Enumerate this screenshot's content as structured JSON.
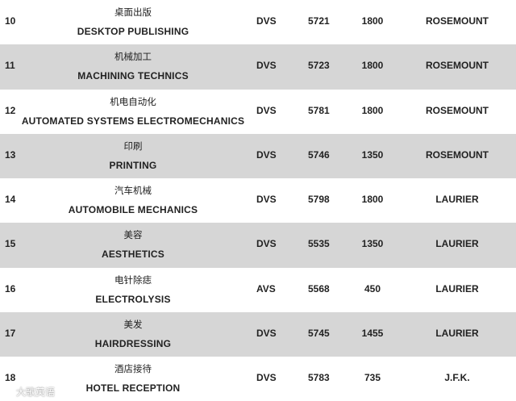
{
  "rows": [
    {
      "num": "10",
      "program_cn": "桌面出版",
      "program_en": "DESKTOP PUBLISHING",
      "type": "DVS",
      "code": "5721",
      "hours": "1800",
      "school": "ROSEMOUNT",
      "shaded": false
    },
    {
      "num": "11",
      "program_cn": "机械加工",
      "program_en": "MACHINING TECHNICS",
      "type": "DVS",
      "code": "5723",
      "hours": "1800",
      "school": "ROSEMOUNT",
      "shaded": true
    },
    {
      "num": "12",
      "program_cn": "机电自动化",
      "program_en": "AUTOMATED SYSTEMS ELECTROMECHANICS",
      "type": "DVS",
      "code": "5781",
      "hours": "1800",
      "school": "ROSEMOUNT",
      "shaded": false
    },
    {
      "num": "13",
      "program_cn": "印刷",
      "program_en": "PRINTING",
      "type": "DVS",
      "code": "5746",
      "hours": "1350",
      "school": "ROSEMOUNT",
      "shaded": true
    },
    {
      "num": "14",
      "program_cn": "汽车机械",
      "program_en": "AUTOMOBILE MECHANICS",
      "type": "DVS",
      "code": "5798",
      "hours": "1800",
      "school": "LAURIER",
      "shaded": false
    },
    {
      "num": "15",
      "program_cn": "美容",
      "program_en": "AESTHETICS",
      "type": "DVS",
      "code": "5535",
      "hours": "1350",
      "school": "LAURIER",
      "shaded": true
    },
    {
      "num": "16",
      "program_cn": "电针除痣",
      "program_en": "ELECTROLYSIS",
      "type": "AVS",
      "code": "5568",
      "hours": "450",
      "school": "LAURIER",
      "shaded": false
    },
    {
      "num": "17",
      "program_cn": "美发",
      "program_en": "HAIRDRESSING",
      "type": "DVS",
      "code": "5745",
      "hours": "1455",
      "school": "LAURIER",
      "shaded": true
    },
    {
      "num": "18",
      "program_cn": "酒店接待",
      "program_en": "HOTEL RECEPTION",
      "type": "DVS",
      "code": "5783",
      "hours": "735",
      "school": "J.F.K.",
      "shaded": false
    }
  ],
  "watermark": {
    "text": "大歌英语",
    "icon": "weibo-logo-icon"
  },
  "colors": {
    "shaded_row": "#d6d6d6",
    "text": "#222222"
  }
}
